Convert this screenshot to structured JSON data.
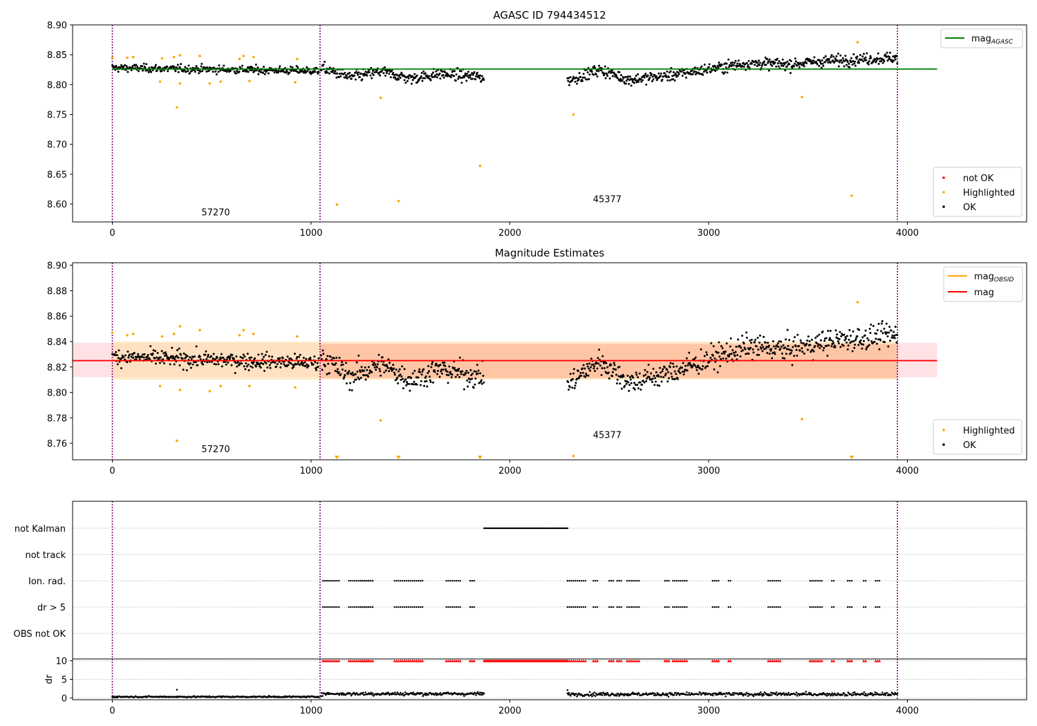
{
  "chart_data": [
    {
      "type": "scatter",
      "title": "AGASC ID 794434512",
      "xlim": [
        -200,
        4600
      ],
      "ylim": [
        8.57,
        8.9
      ],
      "xticks": [
        0,
        1000,
        2000,
        3000,
        4000
      ],
      "yticks": [
        8.6,
        8.65,
        8.7,
        8.75,
        8.8,
        8.85,
        8.9
      ],
      "vlines": [
        0,
        1045,
        3950
      ],
      "hline": {
        "label_main": "mag",
        "label_sub": "AGASC",
        "y": 8.826,
        "x_range": [
          0,
          4150
        ],
        "color": "#008000"
      },
      "annotations": [
        {
          "text": "57270",
          "x": 520,
          "y": 8.581
        },
        {
          "text": "45377",
          "x": 2490,
          "y": 8.603
        }
      ],
      "legend_lines": [
        {
          "label_main": "mag",
          "label_sub": "AGASC",
          "color": "#008000"
        }
      ],
      "legend_points": [
        {
          "label": "not OK",
          "color": "#ff0000"
        },
        {
          "label": "Highlighted",
          "color": "#ffa500"
        },
        {
          "label": "OK",
          "color": "#000000"
        }
      ],
      "segments": [
        {
          "x": [
            0,
            1040
          ],
          "levels": [
            [
              0,
              8.828
            ],
            [
              1040,
              8.823
            ]
          ],
          "noise": 0.0055
        },
        {
          "x": [
            1050,
            1870
          ],
          "levels": [
            [
              1050,
              8.828
            ],
            [
              1200,
              8.812
            ],
            [
              1350,
              8.822
            ],
            [
              1500,
              8.81
            ],
            [
              1650,
              8.818
            ],
            [
              1870,
              8.812
            ]
          ],
          "noise": 0.008
        },
        {
          "x": [
            2290,
            3950
          ],
          "levels": [
            [
              2290,
              8.806
            ],
            [
              2450,
              8.825
            ],
            [
              2600,
              8.808
            ],
            [
              2800,
              8.815
            ],
            [
              3000,
              8.826
            ],
            [
              3200,
              8.836
            ],
            [
              3400,
              8.834
            ],
            [
              3600,
              8.84
            ],
            [
              3800,
              8.843
            ],
            [
              3950,
              8.845
            ]
          ],
          "noise": 0.008
        }
      ],
      "highlighted": [
        {
          "x": 0,
          "y": 8.845
        },
        {
          "x": 75,
          "y": 8.845
        },
        {
          "x": 105,
          "y": 8.846
        },
        {
          "x": 250,
          "y": 8.844
        },
        {
          "x": 310,
          "y": 8.846
        },
        {
          "x": 340,
          "y": 8.849
        },
        {
          "x": 440,
          "y": 8.848
        },
        {
          "x": 640,
          "y": 8.843
        },
        {
          "x": 660,
          "y": 8.848
        },
        {
          "x": 710,
          "y": 8.846
        },
        {
          "x": 930,
          "y": 8.843
        },
        {
          "x": 240,
          "y": 8.805
        },
        {
          "x": 340,
          "y": 8.802
        },
        {
          "x": 490,
          "y": 8.802
        },
        {
          "x": 545,
          "y": 8.805
        },
        {
          "x": 690,
          "y": 8.806
        },
        {
          "x": 920,
          "y": 8.804
        },
        {
          "x": 325,
          "y": 8.762
        },
        {
          "x": 1130,
          "y": 8.599
        },
        {
          "x": 1350,
          "y": 8.778
        },
        {
          "x": 1440,
          "y": 8.605
        },
        {
          "x": 1850,
          "y": 8.664
        },
        {
          "x": 2320,
          "y": 8.75
        },
        {
          "x": 3470,
          "y": 8.779
        },
        {
          "x": 3720,
          "y": 8.614
        },
        {
          "x": 3750,
          "y": 8.871
        }
      ]
    },
    {
      "type": "scatter",
      "title": "Magnitude Estimates",
      "xlim": [
        -200,
        4600
      ],
      "ylim": [
        8.747,
        8.902
      ],
      "xticks": [
        0,
        1000,
        2000,
        3000,
        4000
      ],
      "yticks": [
        8.76,
        8.78,
        8.8,
        8.82,
        8.84,
        8.86,
        8.88,
        8.9
      ],
      "vlines": [
        0,
        1045,
        3950
      ],
      "hline": {
        "label": "mag",
        "y": 8.825,
        "x_range": [
          -200,
          4150
        ],
        "color": "#ff0000"
      },
      "bands": [
        {
          "x_range": [
            -200,
            4150
          ],
          "y_range": [
            8.812,
            8.839
          ],
          "color": "#ffb6c1"
        },
        {
          "x_range": [
            0,
            3950
          ],
          "y_range": [
            8.81,
            8.84
          ],
          "color": "#ffdfa0"
        },
        {
          "x_range": [
            1045,
            3950
          ],
          "y_range": [
            8.811,
            8.838
          ],
          "color": "#ffb090"
        }
      ],
      "annotations": [
        {
          "text": "57270",
          "x": 520,
          "y": 8.753
        },
        {
          "text": "45377",
          "x": 2490,
          "y": 8.764
        }
      ],
      "legend_lines": [
        {
          "label_main": "mag",
          "label_sub": "OBSID",
          "color": "#ffa500"
        },
        {
          "label_main": "mag",
          "label_sub": "",
          "color": "#ff0000"
        }
      ],
      "legend_points": [
        {
          "label": "Highlighted",
          "color": "#ffa500"
        },
        {
          "label": "OK",
          "color": "#000000"
        }
      ],
      "segments": [
        {
          "x": [
            0,
            1040
          ],
          "levels": [
            [
              0,
              8.828
            ],
            [
              1040,
              8.823
            ]
          ],
          "noise": 0.0055
        },
        {
          "x": [
            1050,
            1870
          ],
          "levels": [
            [
              1050,
              8.828
            ],
            [
              1200,
              8.812
            ],
            [
              1350,
              8.822
            ],
            [
              1500,
              8.81
            ],
            [
              1650,
              8.818
            ],
            [
              1870,
              8.812
            ]
          ],
          "noise": 0.008
        },
        {
          "x": [
            2290,
            3950
          ],
          "levels": [
            [
              2290,
              8.806
            ],
            [
              2450,
              8.825
            ],
            [
              2600,
              8.808
            ],
            [
              2800,
              8.815
            ],
            [
              3000,
              8.826
            ],
            [
              3200,
              8.836
            ],
            [
              3400,
              8.834
            ],
            [
              3600,
              8.84
            ],
            [
              3800,
              8.843
            ],
            [
              3950,
              8.845
            ]
          ],
          "noise": 0.008
        }
      ],
      "highlighted": [
        {
          "x": 0,
          "y": 8.847
        },
        {
          "x": 75,
          "y": 8.845
        },
        {
          "x": 105,
          "y": 8.846
        },
        {
          "x": 250,
          "y": 8.844
        },
        {
          "x": 310,
          "y": 8.846
        },
        {
          "x": 340,
          "y": 8.852
        },
        {
          "x": 440,
          "y": 8.849
        },
        {
          "x": 640,
          "y": 8.845
        },
        {
          "x": 660,
          "y": 8.849
        },
        {
          "x": 710,
          "y": 8.846
        },
        {
          "x": 930,
          "y": 8.844
        },
        {
          "x": 240,
          "y": 8.805
        },
        {
          "x": 340,
          "y": 8.802
        },
        {
          "x": 490,
          "y": 8.801
        },
        {
          "x": 545,
          "y": 8.805
        },
        {
          "x": 690,
          "y": 8.805
        },
        {
          "x": 920,
          "y": 8.804
        },
        {
          "x": 325,
          "y": 8.762
        },
        {
          "x": 1350,
          "y": 8.778
        },
        {
          "x": 2320,
          "y": 8.75
        },
        {
          "x": 3470,
          "y": 8.779
        },
        {
          "x": 3750,
          "y": 8.871
        }
      ],
      "offscale_markers": [
        1130,
        1440,
        1850,
        3720
      ]
    },
    {
      "type": "scatter",
      "title": "",
      "xlim": [
        -200,
        4600
      ],
      "xticks": [
        0,
        1000,
        2000,
        3000,
        4000
      ],
      "vlines": [
        0,
        1045,
        3950
      ],
      "flag_labels": [
        "not Kalman",
        "not track",
        "Ion. rad.",
        "dr > 5",
        "OBS not OK"
      ],
      "flag_not_kalman": [
        [
          1870,
          2290
        ]
      ],
      "flag_ion_rad": [
        [
          1060,
          1100
        ],
        [
          1110,
          1140
        ],
        [
          1190,
          1290
        ],
        [
          1250,
          1310
        ],
        [
          1420,
          1560
        ],
        [
          1680,
          1750
        ],
        [
          1800,
          1820
        ],
        [
          2290,
          2330
        ],
        [
          2340,
          2380
        ],
        [
          2420,
          2440
        ],
        [
          2500,
          2520
        ],
        [
          2540,
          2560
        ],
        [
          2590,
          2610
        ],
        [
          2620,
          2650
        ],
        [
          2780,
          2800
        ],
        [
          2820,
          2860
        ],
        [
          2870,
          2890
        ],
        [
          3020,
          3050
        ],
        [
          3100,
          3110
        ],
        [
          3300,
          3360
        ],
        [
          3510,
          3570
        ],
        [
          3620,
          3630
        ],
        [
          3700,
          3720
        ],
        [
          3780,
          3790
        ],
        [
          3840,
          3860
        ]
      ],
      "dr_ylabel": "dr",
      "dr_ylim": [
        -0.5,
        10.5
      ],
      "dr_yticks": [
        0,
        5,
        10
      ],
      "dr_segments": [
        {
          "x": [
            0,
            1040
          ],
          "base": 0.3,
          "noise": 0.15
        },
        {
          "x": [
            1050,
            1870
          ],
          "base": 1.1,
          "noise": 0.4
        },
        {
          "x": [
            2290,
            3950
          ],
          "base": 1.0,
          "noise": 0.4
        }
      ],
      "dr_outliers": [
        {
          "x": 325,
          "y": 2.2
        },
        {
          "x": 2290,
          "y": 2.1
        }
      ],
      "dr_capped_color": "#ff0000"
    }
  ],
  "colors": {
    "ok": "#000000",
    "highlighted": "#ffa500",
    "not_ok": "#ff0000",
    "vline": "#800080"
  }
}
